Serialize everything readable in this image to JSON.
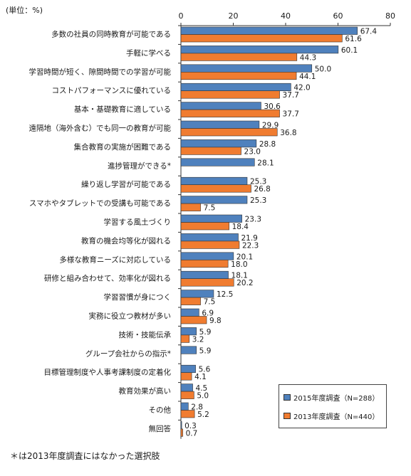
{
  "unit_label": "(単位：%)",
  "footnote": "＊は2013年度調査にはなかった選択肢",
  "colors": {
    "s2015": "#4f81bd",
    "s2013": "#f07c30",
    "axis": "#333333"
  },
  "chart_data": {
    "type": "bar",
    "orientation": "horizontal",
    "xlim": [
      0,
      80
    ],
    "xticks": [
      0,
      20,
      40,
      60,
      80
    ],
    "grid": false,
    "legend_position": "bottom-right",
    "categories": [
      "多数の社員の同時教育が可能である",
      "手軽に学べる",
      "学習時間が短く、隙間時間での学習が可能",
      "コストパフォーマンスに優れている",
      "基本・基礎教育に適している",
      "遠隔地（海外含む）でも同一の教育が可能",
      "集合教育の実施が困難である",
      "進捗管理ができる*",
      "繰り返し学習が可能である",
      "スマホやタブレットでの受講も可能である",
      "学習する風土づくり",
      "教育の機会均等化が図れる",
      "多様な教育ニーズに対応している",
      "研修と組み合わせて、効率化が図れる",
      "学習習慣が身につく",
      "実務に役立つ教材が多い",
      "技術・技能伝承",
      "グループ会社からの指示*",
      "目標管理制度や人事考課制度の定着化",
      "教育効果が高い",
      "その他",
      "無回答"
    ],
    "series": [
      {
        "name": "2015年度調査（N=288）",
        "values": [
          67.4,
          60.1,
          50.0,
          42.0,
          30.6,
          29.9,
          28.8,
          28.1,
          25.3,
          25.3,
          23.3,
          21.9,
          20.1,
          18.1,
          12.5,
          6.9,
          5.9,
          5.9,
          5.6,
          4.5,
          2.8,
          0.3
        ]
      },
      {
        "name": "2013年度調査（N=440）",
        "values": [
          61.6,
          44.3,
          44.1,
          37.7,
          37.7,
          36.8,
          23.0,
          null,
          26.8,
          7.5,
          18.4,
          22.3,
          18.0,
          20.2,
          7.5,
          9.8,
          3.2,
          null,
          4.1,
          5.0,
          5.2,
          0.7
        ]
      }
    ]
  }
}
